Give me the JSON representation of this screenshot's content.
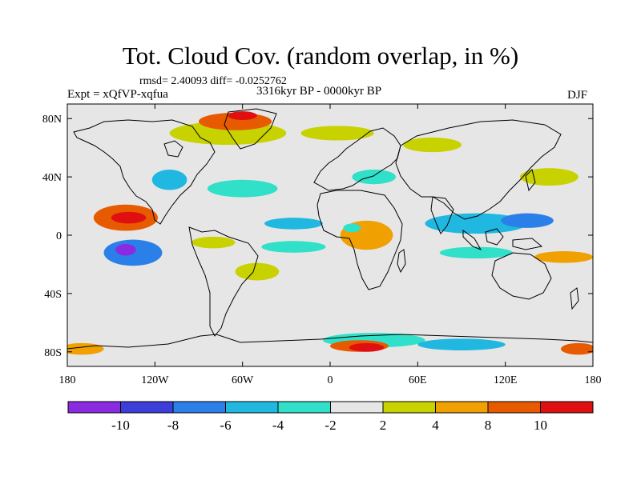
{
  "title": "Tot. Cloud Cov. (random overlap, in %)",
  "stats_text": "rmsd= 2.40093 diff= -0.0252762",
  "experiment_text": "Expt = xQfVP-xqfua",
  "period_text": "3316kyr BP - 0000kyr BP",
  "season_text": "DJF",
  "chart_data": {
    "type": "heatmap",
    "title": "Tot. Cloud Cov. (random overlap, in %)",
    "subtitle": "3316kyr BP - 0000kyr BP",
    "x_axis": {
      "range": [
        -180,
        180
      ],
      "ticks": [
        {
          "v": -180,
          "label": "180"
        },
        {
          "v": -120,
          "label": "120W"
        },
        {
          "v": -60,
          "label": "60W"
        },
        {
          "v": 0,
          "label": "0"
        },
        {
          "v": 60,
          "label": "60E"
        },
        {
          "v": 120,
          "label": "120E"
        },
        {
          "v": 180,
          "label": "180"
        }
      ]
    },
    "y_axis": {
      "range": [
        -90,
        90
      ],
      "ticks": [
        {
          "v": 80,
          "label": "80N"
        },
        {
          "v": 40,
          "label": "40N"
        },
        {
          "v": 0,
          "label": "0"
        },
        {
          "v": -40,
          "label": "40S"
        },
        {
          "v": -80,
          "label": "80S"
        }
      ]
    },
    "colorbar": {
      "colors": [
        "#8a2be2",
        "#3d3dd9",
        "#2a80e8",
        "#20b8e0",
        "#30e0c8",
        "#e6e6e6",
        "#c8d200",
        "#f0a000",
        "#e85a00",
        "#e01010"
      ],
      "labels": [
        "-10",
        "-8",
        "-6",
        "-4",
        "-2",
        "2",
        "4",
        "8",
        "10"
      ]
    },
    "anomaly_regions": [
      {
        "lon": -140,
        "lat": 12,
        "rlon": 22,
        "rlat": 9,
        "level": 8
      },
      {
        "lon": -138,
        "lat": 12,
        "rlon": 12,
        "rlat": 4,
        "level": 9
      },
      {
        "lon": -135,
        "lat": -12,
        "rlon": 20,
        "rlat": 9,
        "level": 2
      },
      {
        "lon": -140,
        "lat": -10,
        "rlon": 7,
        "rlat": 4,
        "level": 0
      },
      {
        "lon": -110,
        "lat": 38,
        "rlon": 12,
        "rlat": 7,
        "level": 3
      },
      {
        "lon": -60,
        "lat": 32,
        "rlon": 24,
        "rlat": 6,
        "level": 4
      },
      {
        "lon": -25,
        "lat": 8,
        "rlon": 20,
        "rlat": 4,
        "level": 3
      },
      {
        "lon": -25,
        "lat": -8,
        "rlon": 22,
        "rlat": 4,
        "level": 4
      },
      {
        "lon": -80,
        "lat": -5,
        "rlon": 15,
        "rlat": 4,
        "level": 6
      },
      {
        "lon": 100,
        "lat": 8,
        "rlon": 35,
        "rlat": 7,
        "level": 3
      },
      {
        "lon": 135,
        "lat": 10,
        "rlon": 18,
        "rlat": 5,
        "level": 2
      },
      {
        "lon": 100,
        "lat": -12,
        "rlon": 25,
        "rlat": 4,
        "level": 4
      },
      {
        "lon": 25,
        "lat": 0,
        "rlon": 18,
        "rlat": 10,
        "level": 7
      },
      {
        "lon": 15,
        "lat": 5,
        "rlon": 6,
        "rlat": 3,
        "level": 4
      },
      {
        "lon": -70,
        "lat": 70,
        "rlon": 40,
        "rlat": 8,
        "level": 6
      },
      {
        "lon": -65,
        "lat": 78,
        "rlon": 25,
        "rlat": 6,
        "level": 8
      },
      {
        "lon": -60,
        "lat": 82,
        "rlon": 10,
        "rlat": 3,
        "level": 9
      },
      {
        "lon": 30,
        "lat": -72,
        "rlon": 35,
        "rlat": 5,
        "level": 4
      },
      {
        "lon": 20,
        "lat": -76,
        "rlon": 20,
        "rlat": 4,
        "level": 8
      },
      {
        "lon": 25,
        "lat": -77,
        "rlon": 12,
        "rlat": 3,
        "level": 9
      },
      {
        "lon": -170,
        "lat": -78,
        "rlon": 15,
        "rlat": 4,
        "level": 7
      },
      {
        "lon": 170,
        "lat": -78,
        "rlon": 12,
        "rlat": 4,
        "level": 8
      },
      {
        "lon": 90,
        "lat": -75,
        "rlon": 30,
        "rlat": 4,
        "level": 3
      },
      {
        "lon": 150,
        "lat": 40,
        "rlon": 20,
        "rlat": 6,
        "level": 6
      },
      {
        "lon": 160,
        "lat": -15,
        "rlon": 20,
        "rlat": 4,
        "level": 7
      },
      {
        "lon": 5,
        "lat": 70,
        "rlon": 25,
        "rlat": 5,
        "level": 6
      },
      {
        "lon": 70,
        "lat": 62,
        "rlon": 20,
        "rlat": 5,
        "level": 6
      },
      {
        "lon": -50,
        "lat": -25,
        "rlon": 15,
        "rlat": 6,
        "level": 6
      },
      {
        "lon": 30,
        "lat": 40,
        "rlon": 15,
        "rlat": 5,
        "level": 4
      }
    ]
  }
}
